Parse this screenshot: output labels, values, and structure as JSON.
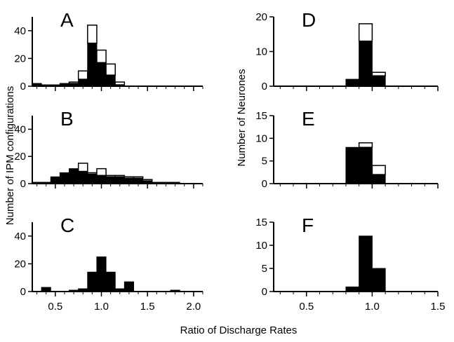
{
  "colors": {
    "filled": "#000000",
    "open": "#ffffff",
    "stroke": "#000000"
  },
  "labels": {
    "left_ylabel": "Number of IPM configurations",
    "right_ylabel": "Number of Neurones",
    "xlabel": "Ratio of Discharge Rates"
  },
  "chart_data": [
    {
      "type": "bar",
      "panel": "A",
      "column": "left",
      "xlim": [
        0.25,
        2.1
      ],
      "ylim": [
        0,
        50
      ],
      "xticks": [
        0.5,
        1.0,
        1.5,
        2.0
      ],
      "xtick_labels": [],
      "yticks": [
        0,
        20,
        40
      ],
      "ytick_labels": [
        "0",
        "20",
        "40"
      ],
      "bins": [
        {
          "x0": 0.25,
          "x1": 0.35,
          "filled": 2,
          "total": 2
        },
        {
          "x0": 0.35,
          "x1": 0.45,
          "filled": 1,
          "total": 1
        },
        {
          "x0": 0.45,
          "x1": 0.55,
          "filled": 1,
          "total": 1
        },
        {
          "x0": 0.55,
          "x1": 0.65,
          "filled": 2,
          "total": 2
        },
        {
          "x0": 0.65,
          "x1": 0.75,
          "filled": 2,
          "total": 3
        },
        {
          "x0": 0.75,
          "x1": 0.85,
          "filled": 5,
          "total": 11
        },
        {
          "x0": 0.85,
          "x1": 0.95,
          "filled": 31,
          "total": 44
        },
        {
          "x0": 0.95,
          "x1": 1.05,
          "filled": 17,
          "total": 26
        },
        {
          "x0": 1.05,
          "x1": 1.15,
          "filled": 8,
          "total": 16
        },
        {
          "x0": 1.15,
          "x1": 1.25,
          "filled": 1,
          "total": 3
        }
      ]
    },
    {
      "type": "bar",
      "panel": "B",
      "column": "left",
      "xlim": [
        0.25,
        2.1
      ],
      "ylim": [
        0,
        50
      ],
      "xticks": [
        0.5,
        1.0,
        1.5,
        2.0
      ],
      "xtick_labels": [],
      "yticks": [
        0,
        20,
        40
      ],
      "ytick_labels": [
        "0",
        "20",
        "40"
      ],
      "bins": [
        {
          "x0": 0.25,
          "x1": 0.35,
          "filled": 1,
          "total": 1
        },
        {
          "x0": 0.35,
          "x1": 0.45,
          "filled": 1,
          "total": 1
        },
        {
          "x0": 0.45,
          "x1": 0.55,
          "filled": 5,
          "total": 5
        },
        {
          "x0": 0.55,
          "x1": 0.65,
          "filled": 8,
          "total": 8
        },
        {
          "x0": 0.65,
          "x1": 0.75,
          "filled": 11,
          "total": 11
        },
        {
          "x0": 0.75,
          "x1": 0.85,
          "filled": 9,
          "total": 15
        },
        {
          "x0": 0.85,
          "x1": 0.95,
          "filled": 7,
          "total": 8
        },
        {
          "x0": 0.95,
          "x1": 1.05,
          "filled": 6,
          "total": 11
        },
        {
          "x0": 1.05,
          "x1": 1.15,
          "filled": 5,
          "total": 6
        },
        {
          "x0": 1.15,
          "x1": 1.25,
          "filled": 5,
          "total": 6
        },
        {
          "x0": 1.25,
          "x1": 1.35,
          "filled": 4,
          "total": 5
        },
        {
          "x0": 1.35,
          "x1": 1.45,
          "filled": 4,
          "total": 5
        },
        {
          "x0": 1.45,
          "x1": 1.55,
          "filled": 2,
          "total": 3
        },
        {
          "x0": 1.55,
          "x1": 1.65,
          "filled": 1,
          "total": 1
        },
        {
          "x0": 1.65,
          "x1": 1.75,
          "filled": 1,
          "total": 1
        },
        {
          "x0": 1.75,
          "x1": 1.85,
          "filled": 1,
          "total": 1
        }
      ]
    },
    {
      "type": "bar",
      "panel": "C",
      "column": "left",
      "xlim": [
        0.25,
        2.1
      ],
      "ylim": [
        0,
        50
      ],
      "xticks": [
        0.5,
        1.0,
        1.5,
        2.0
      ],
      "xtick_labels": [
        "0.5",
        "1.0",
        "1.5",
        "2.0"
      ],
      "yticks": [
        0,
        20,
        40
      ],
      "ytick_labels": [
        "0",
        "20",
        "40"
      ],
      "bins": [
        {
          "x0": 0.35,
          "x1": 0.45,
          "filled": 3,
          "total": 3
        },
        {
          "x0": 0.65,
          "x1": 0.75,
          "filled": 1,
          "total": 1
        },
        {
          "x0": 0.75,
          "x1": 0.85,
          "filled": 2,
          "total": 2
        },
        {
          "x0": 0.85,
          "x1": 0.95,
          "filled": 14,
          "total": 14
        },
        {
          "x0": 0.95,
          "x1": 1.05,
          "filled": 25,
          "total": 25
        },
        {
          "x0": 1.05,
          "x1": 1.15,
          "filled": 14,
          "total": 14
        },
        {
          "x0": 1.15,
          "x1": 1.25,
          "filled": 2,
          "total": 2
        },
        {
          "x0": 1.25,
          "x1": 1.35,
          "filled": 7,
          "total": 7
        },
        {
          "x0": 1.75,
          "x1": 1.85,
          "filled": 1,
          "total": 1
        }
      ]
    },
    {
      "type": "bar",
      "panel": "D",
      "column": "right",
      "xlim": [
        0.25,
        1.5
      ],
      "ylim": [
        0,
        20
      ],
      "xticks": [
        0.5,
        1.0,
        1.5
      ],
      "xtick_labels": [],
      "yticks": [
        0,
        10,
        20
      ],
      "ytick_labels": [
        "0",
        "10",
        "20"
      ],
      "bins": [
        {
          "x0": 0.8,
          "x1": 0.9,
          "filled": 2,
          "total": 2
        },
        {
          "x0": 0.9,
          "x1": 1.0,
          "filled": 13,
          "total": 18
        },
        {
          "x0": 1.0,
          "x1": 1.1,
          "filled": 3,
          "total": 4
        }
      ]
    },
    {
      "type": "bar",
      "panel": "E",
      "column": "right",
      "xlim": [
        0.25,
        1.5
      ],
      "ylim": [
        0,
        15
      ],
      "xticks": [
        0.5,
        1.0,
        1.5
      ],
      "xtick_labels": [],
      "yticks": [
        0,
        5,
        10,
        15
      ],
      "ytick_labels": [
        "0",
        "5",
        "10",
        "15"
      ],
      "bins": [
        {
          "x0": 0.8,
          "x1": 0.9,
          "filled": 8,
          "total": 8
        },
        {
          "x0": 0.9,
          "x1": 1.0,
          "filled": 8,
          "total": 9
        },
        {
          "x0": 1.0,
          "x1": 1.1,
          "filled": 2,
          "total": 4
        }
      ]
    },
    {
      "type": "bar",
      "panel": "F",
      "column": "right",
      "xlim": [
        0.25,
        1.5
      ],
      "ylim": [
        0,
        15
      ],
      "xticks": [
        0.5,
        1.0,
        1.5
      ],
      "xtick_labels": [
        "0.5",
        "1.0",
        "1.5"
      ],
      "yticks": [
        0,
        5,
        10,
        15
      ],
      "ytick_labels": [
        "0",
        "5",
        "10",
        "15"
      ],
      "bins": [
        {
          "x0": 0.8,
          "x1": 0.9,
          "filled": 1,
          "total": 1
        },
        {
          "x0": 0.9,
          "x1": 1.0,
          "filled": 12,
          "total": 12
        },
        {
          "x0": 1.0,
          "x1": 1.1,
          "filled": 5,
          "total": 5
        }
      ]
    }
  ]
}
